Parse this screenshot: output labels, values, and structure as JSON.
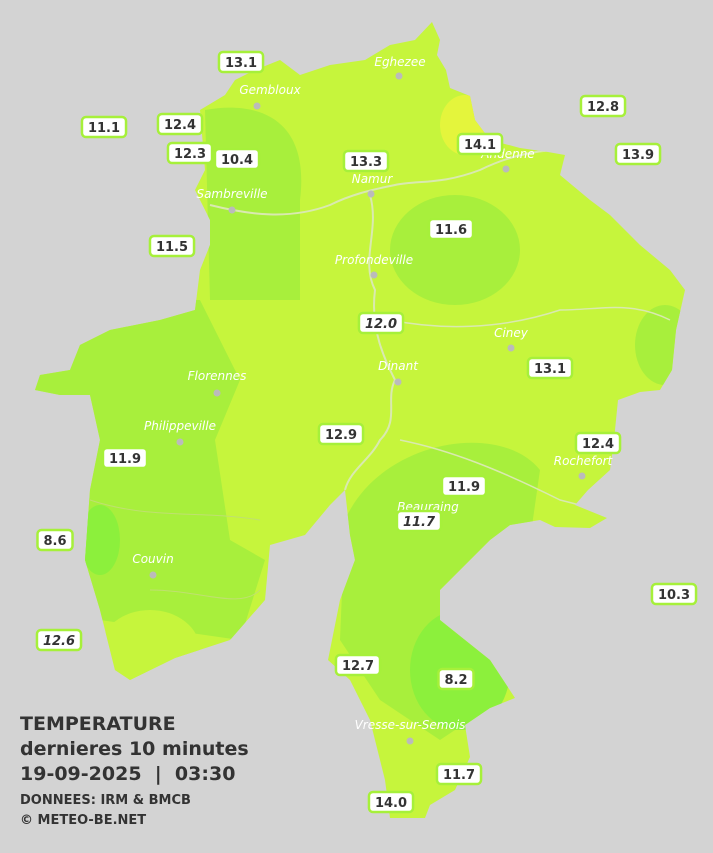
{
  "title": "TEMPERATURE",
  "subtitle": "dernieres 10 minutes",
  "datetime": "19-09-2025  |  03:30",
  "source": "DONNEES: IRM & BMCB",
  "copyright": "© METEO-BE.NET",
  "cities": [
    "Gembloux",
    "Eghezee",
    "Andenne",
    "Namur",
    "Sambreville",
    "Profondeville",
    "Ciney",
    "Dinant",
    "Florennes",
    "Philippeville",
    "Rochefort",
    "Beauraing",
    "Couvin",
    "Vresse-sur-Semois"
  ],
  "stations": [
    {
      "label": "13.1"
    },
    {
      "label": "11.1"
    },
    {
      "label": "12.4"
    },
    {
      "label": "12.3"
    },
    {
      "label": "10.4"
    },
    {
      "label": "13.3"
    },
    {
      "label": "14.1"
    },
    {
      "label": "12.8"
    },
    {
      "label": "13.9"
    },
    {
      "label": "11.5"
    },
    {
      "label": "11.6"
    },
    {
      "label": "12.0",
      "italic": true
    },
    {
      "label": "13.1"
    },
    {
      "label": "12.9"
    },
    {
      "label": "12.4"
    },
    {
      "label": "11.9"
    },
    {
      "label": "11.9"
    },
    {
      "label": "11.7",
      "italic": true
    },
    {
      "label": "8.6"
    },
    {
      "label": "10.3"
    },
    {
      "label": "12.6",
      "italic": true
    },
    {
      "label": "12.7"
    },
    {
      "label": "8.2"
    },
    {
      "label": "11.7"
    },
    {
      "label": "14.0"
    }
  ]
}
